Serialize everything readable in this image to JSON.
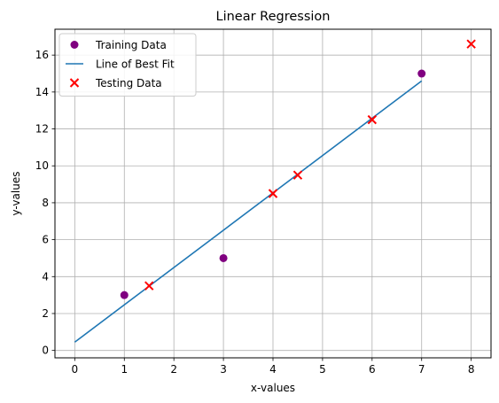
{
  "chart_data": {
    "type": "scatter",
    "title": "Linear Regression",
    "xlabel": "x-values",
    "ylabel": "y-values",
    "xlim": [
      -0.4,
      8.4
    ],
    "ylim": [
      -0.4,
      17.4
    ],
    "xticks": [
      0,
      1,
      2,
      3,
      4,
      5,
      6,
      7,
      8
    ],
    "yticks": [
      0,
      2,
      4,
      6,
      8,
      10,
      12,
      14,
      16
    ],
    "grid": true,
    "legend_position": "top-left",
    "series": [
      {
        "name": "Training Data",
        "kind": "scatter",
        "marker": "circle",
        "color": "#800080",
        "points": [
          [
            1,
            3
          ],
          [
            3,
            5
          ],
          [
            7,
            15
          ]
        ]
      },
      {
        "name": "Line of Best Fit",
        "kind": "line",
        "color": "#1f77b4",
        "points": [
          [
            0,
            0.45
          ],
          [
            7,
            14.6
          ]
        ]
      },
      {
        "name": "Testing Data",
        "kind": "scatter",
        "marker": "x",
        "color": "#ff0000",
        "points": [
          [
            1.5,
            3.5
          ],
          [
            4,
            8.5
          ],
          [
            4.5,
            9.5
          ],
          [
            6,
            12.5
          ],
          [
            8,
            16.6
          ]
        ]
      }
    ]
  }
}
